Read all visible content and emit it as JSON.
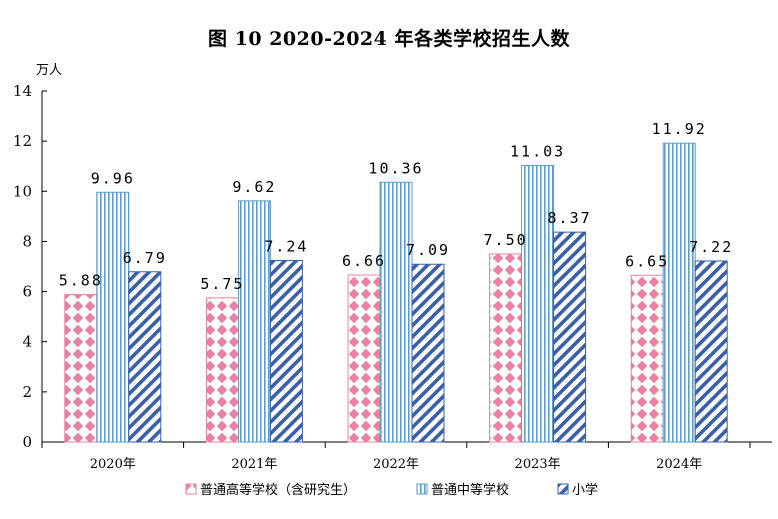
{
  "chart_data": {
    "type": "bar",
    "title": "图 10   2020-2024 年各类学校招生人数",
    "ylabel": "万人",
    "xlabel": "",
    "ylim": [
      0,
      14
    ],
    "yticks": [
      0,
      2,
      4,
      6,
      8,
      10,
      12,
      14
    ],
    "grid": false,
    "legend_position": "bottom",
    "categories": [
      "2020年",
      "2021年",
      "2022年",
      "2023年",
      "2024年"
    ],
    "series": [
      {
        "name": "普通高等学校（含研究生）",
        "color": "#e8809e",
        "pattern": "diamond-checker",
        "values": [
          5.88,
          5.75,
          6.66,
          7.5,
          6.65
        ],
        "labels": [
          "5.88",
          "5.75",
          "6.66",
          "7.50",
          "6.65"
        ]
      },
      {
        "name": "普通中等学校",
        "color": "#5e9cc9",
        "pattern": "vertical-stripes",
        "values": [
          9.96,
          9.62,
          10.36,
          11.03,
          11.92
        ],
        "labels": [
          "9.96",
          "9.62",
          "10.36",
          "11.03",
          "11.92"
        ]
      },
      {
        "name": "小学",
        "color": "#3a5fa8",
        "pattern": "diagonal-stripes",
        "values": [
          6.79,
          7.24,
          7.09,
          8.37,
          7.22
        ],
        "labels": [
          "6.79",
          "7.24",
          "7.09",
          "8.37",
          "7.22"
        ]
      }
    ]
  }
}
